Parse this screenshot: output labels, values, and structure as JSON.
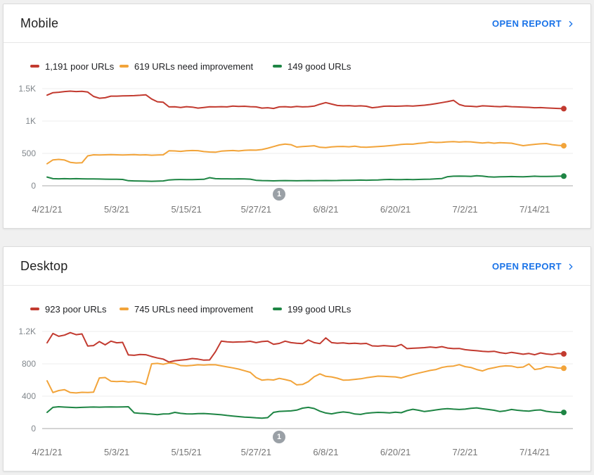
{
  "colors": {
    "link": "#1a73e8",
    "gridline": "#ececec",
    "axis_line": "#a9a9a9",
    "badge": "#9aa0a6"
  },
  "cards": [
    {
      "title": "Mobile",
      "open_report_label": "OPEN REPORT",
      "legend": [
        {
          "label": "1,191 poor URLs"
        },
        {
          "label": "619 URLs need improvement"
        },
        {
          "label": "149 good URLs"
        }
      ],
      "chart_data": {
        "type": "line",
        "ylim": [
          0,
          1500
        ],
        "grid": true,
        "y_ticks": [
          {
            "value": 1500,
            "label": "1.5K"
          },
          {
            "value": 1000,
            "label": "1K"
          },
          {
            "value": 500,
            "label": "500"
          },
          {
            "value": 0,
            "label": "0"
          }
        ],
        "x_ticks": [
          {
            "index": 0,
            "label": "4/21/21"
          },
          {
            "index": 12,
            "label": "5/3/21"
          },
          {
            "index": 24,
            "label": "5/15/21"
          },
          {
            "index": 36,
            "label": "5/27/21"
          },
          {
            "index": 48,
            "label": "6/8/21"
          },
          {
            "index": 60,
            "label": "6/20/21"
          },
          {
            "index": 72,
            "label": "7/2/21"
          },
          {
            "index": 84,
            "label": "7/14/21"
          }
        ],
        "annotation": {
          "label": "1",
          "index": 40
        },
        "series": [
          {
            "id": "poor",
            "name": "poor URLs",
            "latest_value": 1191,
            "color": "#c23a2f",
            "values": [
              1400,
              1438,
              1445,
              1455,
              1462,
              1455,
              1460,
              1448,
              1380,
              1352,
              1360,
              1385,
              1385,
              1388,
              1390,
              1392,
              1398,
              1405,
              1340,
              1298,
              1290,
              1218,
              1220,
              1210,
              1222,
              1215,
              1200,
              1210,
              1220,
              1218,
              1222,
              1218,
              1230,
              1225,
              1228,
              1222,
              1218,
              1200,
              1205,
              1195,
              1218,
              1222,
              1215,
              1225,
              1218,
              1222,
              1230,
              1260,
              1285,
              1262,
              1240,
              1235,
              1238,
              1230,
              1235,
              1228,
              1205,
              1215,
              1228,
              1230,
              1228,
              1232,
              1235,
              1230,
              1238,
              1245,
              1255,
              1270,
              1285,
              1300,
              1320,
              1255,
              1230,
              1228,
              1222,
              1235,
              1230,
              1225,
              1222,
              1228,
              1222,
              1218,
              1215,
              1212,
              1205,
              1208,
              1202,
              1198,
              1195,
              1191
            ]
          },
          {
            "id": "needs-improvement",
            "name": "URLs need improvement",
            "latest_value": 619,
            "color": "#f2a43a",
            "values": [
              340,
              400,
              408,
              398,
              362,
              352,
              355,
              462,
              478,
              475,
              478,
              480,
              478,
              475,
              478,
              480,
              476,
              478,
              472,
              475,
              478,
              540,
              538,
              532,
              540,
              545,
              542,
              528,
              522,
              518,
              535,
              540,
              545,
              538,
              548,
              552,
              550,
              560,
              580,
              605,
              630,
              645,
              635,
              598,
              605,
              612,
              618,
              595,
              590,
              600,
              605,
              608,
              602,
              612,
              598,
              596,
              600,
              605,
              612,
              620,
              628,
              638,
              645,
              642,
              655,
              662,
              675,
              668,
              672,
              678,
              682,
              675,
              680,
              678,
              668,
              660,
              668,
              658,
              665,
              662,
              658,
              638,
              620,
              630,
              640,
              648,
              652,
              635,
              625,
              619
            ]
          },
          {
            "id": "good",
            "name": "good URLs",
            "latest_value": 149,
            "color": "#1e8544",
            "values": [
              135,
              110,
              108,
              110,
              108,
              110,
              108,
              105,
              106,
              104,
              102,
              100,
              100,
              98,
              78,
              75,
              73,
              72,
              70,
              72,
              75,
              90,
              95,
              97,
              96,
              95,
              98,
              100,
              125,
              110,
              108,
              108,
              106,
              108,
              105,
              102,
              85,
              80,
              78,
              76,
              78,
              80,
              78,
              77,
              78,
              80,
              78,
              80,
              82,
              80,
              82,
              85,
              84,
              86,
              88,
              86,
              88,
              90,
              95,
              98,
              95,
              96,
              98,
              96,
              98,
              100,
              102,
              108,
              112,
              140,
              148,
              150,
              148,
              146,
              155,
              150,
              138,
              135,
              138,
              140,
              142,
              140,
              138,
              142,
              148,
              145,
              143,
              146,
              148,
              149
            ]
          }
        ]
      }
    },
    {
      "title": "Desktop",
      "open_report_label": "OPEN REPORT",
      "legend": [
        {
          "label": "923 poor URLs"
        },
        {
          "label": "745 URLs need improvement"
        },
        {
          "label": "199 good URLs"
        }
      ],
      "chart_data": {
        "type": "line",
        "ylim": [
          0,
          1200
        ],
        "grid": true,
        "y_ticks": [
          {
            "value": 1200,
            "label": "1.2K"
          },
          {
            "value": 800,
            "label": "800"
          },
          {
            "value": 400,
            "label": "400"
          },
          {
            "value": 0,
            "label": "0"
          }
        ],
        "x_ticks": [
          {
            "index": 0,
            "label": "4/21/21"
          },
          {
            "index": 12,
            "label": "5/3/21"
          },
          {
            "index": 24,
            "label": "5/15/21"
          },
          {
            "index": 36,
            "label": "5/27/21"
          },
          {
            "index": 48,
            "label": "6/8/21"
          },
          {
            "index": 60,
            "label": "6/20/21"
          },
          {
            "index": 72,
            "label": "7/2/21"
          },
          {
            "index": 84,
            "label": "7/14/21"
          }
        ],
        "annotation": {
          "label": "1",
          "index": 40
        },
        "series": [
          {
            "id": "poor",
            "name": "poor URLs",
            "latest_value": 923,
            "color": "#c23a2f",
            "values": [
              1060,
              1175,
              1140,
              1155,
              1185,
              1160,
              1170,
              1020,
              1025,
              1075,
              1035,
              1080,
              1060,
              1065,
              910,
              905,
              915,
              912,
              890,
              872,
              858,
              822,
              838,
              845,
              852,
              865,
              858,
              845,
              848,
              950,
              1080,
              1072,
              1068,
              1070,
              1072,
              1078,
              1062,
              1075,
              1080,
              1042,
              1052,
              1080,
              1062,
              1055,
              1050,
              1095,
              1062,
              1050,
              1120,
              1062,
              1055,
              1058,
              1050,
              1055,
              1048,
              1052,
              1022,
              1018,
              1025,
              1020,
              1015,
              1038,
              988,
              992,
              996,
              1000,
              1008,
              1000,
              1012,
              995,
              988,
              990,
              975,
              968,
              962,
              955,
              950,
              955,
              938,
              928,
              942,
              930,
              918,
              928,
              912,
              935,
              922,
              915,
              928,
              923
            ]
          },
          {
            "id": "needs-improvement",
            "name": "URLs need improvement",
            "latest_value": 745,
            "color": "#f2a43a",
            "values": [
              590,
              445,
              470,
              480,
              445,
              440,
              448,
              445,
              450,
              625,
              630,
              585,
              580,
              585,
              575,
              580,
              570,
              545,
              800,
              805,
              795,
              810,
              805,
              778,
              775,
              780,
              788,
              785,
              790,
              788,
              775,
              762,
              750,
              735,
              715,
              695,
              630,
              598,
              605,
              600,
              620,
              605,
              588,
              540,
              545,
              580,
              640,
              676,
              645,
              638,
              622,
              598,
              600,
              608,
              615,
              628,
              638,
              648,
              645,
              642,
              638,
              625,
              648,
              668,
              685,
              702,
              718,
              730,
              755,
              768,
              772,
              790,
              765,
              755,
              730,
              712,
              738,
              752,
              768,
              775,
              772,
              755,
              760,
              798,
              730,
              740,
              765,
              760,
              748,
              745
            ]
          },
          {
            "id": "good",
            "name": "good URLs",
            "latest_value": 199,
            "color": "#1e8544",
            "values": [
              200,
              262,
              270,
              265,
              262,
              258,
              262,
              264,
              266,
              264,
              266,
              268,
              266,
              268,
              270,
              195,
              188,
              185,
              178,
              172,
              180,
              182,
              200,
              188,
              182,
              180,
              184,
              186,
              182,
              176,
              170,
              162,
              155,
              148,
              142,
              138,
              132,
              128,
              135,
              200,
              212,
              215,
              218,
              228,
              252,
              262,
              248,
              215,
              192,
              182,
              196,
              205,
              198,
              180,
              175,
              190,
              196,
              200,
              198,
              194,
              203,
              196,
              222,
              238,
              226,
              210,
              220,
              230,
              240,
              246,
              240,
              236,
              240,
              250,
              256,
              244,
              236,
              226,
              210,
              220,
              236,
              226,
              220,
              216,
              226,
              230,
              213,
              204,
              200,
              199
            ]
          }
        ]
      }
    }
  ]
}
